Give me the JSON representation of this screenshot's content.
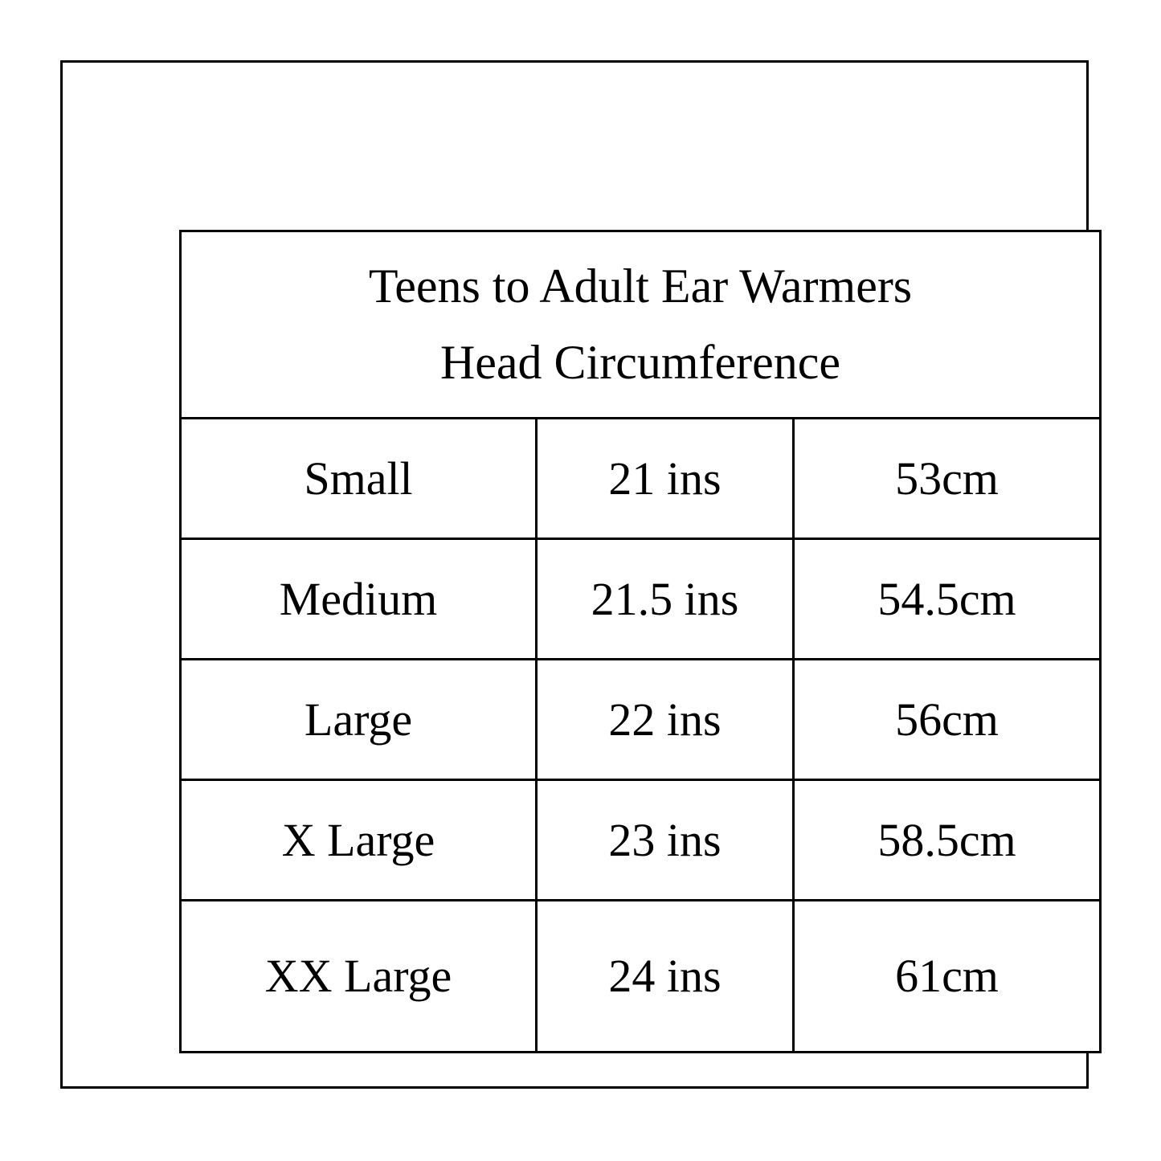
{
  "page": {
    "background_color": "#ffffff",
    "line_color": "#000000",
    "text_color": "#000000"
  },
  "size_chart": {
    "title_line1": "Teens to Adult Ear Warmers",
    "title_line2": "Head Circumference",
    "rows": [
      {
        "size": "Small",
        "inches": "21 ins",
        "cm": "53cm"
      },
      {
        "size": "Medium",
        "inches": "21.5 ins",
        "cm": "54.5cm"
      },
      {
        "size": "Large",
        "inches": "22 ins",
        "cm": "56cm"
      },
      {
        "size": "X Large",
        "inches": "23 ins",
        "cm": "58.5cm"
      },
      {
        "size": "XX Large",
        "inches": "24 ins",
        "cm": "61cm"
      }
    ]
  },
  "chart_data": {
    "type": "table",
    "title": "Teens to Adult Ear Warmers Head Circumference",
    "rows": [
      [
        "Small",
        "21 ins",
        "53cm"
      ],
      [
        "Medium",
        "21.5 ins",
        "54.5cm"
      ],
      [
        "Large",
        "22 ins",
        "56cm"
      ],
      [
        "X Large",
        "23 ins",
        "58.5cm"
      ],
      [
        "XX Large",
        "24 ins",
        "61cm"
      ]
    ]
  }
}
